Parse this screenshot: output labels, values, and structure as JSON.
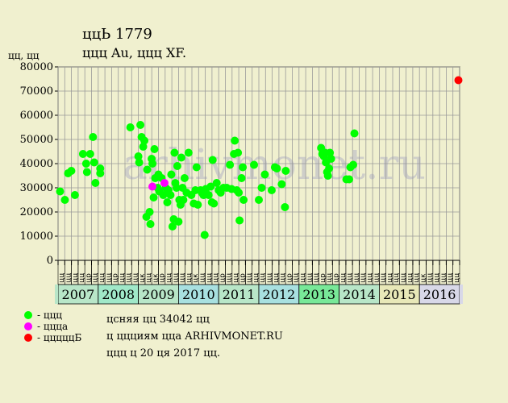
{
  "header": {
    "title": "ццЬ 1779",
    "subtitle": "ццц Au, ццц XF.",
    "y_unit": "цц, цц"
  },
  "legend": [
    {
      "label": "- ццц",
      "color": "#00ff00"
    },
    {
      "label": "- цццa",
      "color": "#ff00ff"
    },
    {
      "label": "- цццццБ",
      "color": "#ff0000"
    }
  ],
  "info": {
    "line1": "цcняя цц 34042 цц",
    "line2": "ц ццциям цца ARHIVMONET.RU",
    "line3": "ццц ц 20 ця 2017 цц."
  },
  "watermark": "arhivmonet.ru",
  "chart_data": {
    "type": "scatter",
    "title": "ццЬ 1779",
    "ylabel": "цц, цц",
    "ylim": [
      0,
      80000
    ],
    "yticks": [
      0,
      10000,
      20000,
      30000,
      40000,
      50000,
      60000,
      70000,
      80000
    ],
    "xlim": [
      2007.0,
      2017.0
    ],
    "grid": true,
    "years": [
      {
        "label": "2007",
        "color": "#b8e6c8"
      },
      {
        "label": "2008",
        "color": "#a0e8c8"
      },
      {
        "label": "2009",
        "color": "#b8e6c8"
      },
      {
        "label": "2010",
        "color": "#a8e0e0"
      },
      {
        "label": "2011",
        "color": "#b8e6c8"
      },
      {
        "label": "2012",
        "color": "#a8e0e0"
      },
      {
        "label": "2013",
        "color": "#78e898"
      },
      {
        "label": "2014",
        "color": "#b8e6c8"
      },
      {
        "label": "2015",
        "color": "#e8e8b8"
      },
      {
        "label": "2016",
        "color": "#d8d8e8"
      }
    ],
    "month_labels": [
      "цц",
      "цц",
      "цц",
      "цц",
      "цр",
      "цц",
      "цц",
      "цц",
      "цр",
      "цц",
      "цц",
      "цц",
      "цк",
      "цц",
      "цк",
      "цр",
      "цц",
      "цц",
      "цц",
      "цц",
      "цк",
      "цц",
      "цц",
      "цц",
      "цр",
      "цц",
      "цц",
      "цр",
      "цц",
      "цц",
      "цц",
      "цц",
      "цц",
      "цц",
      "цр",
      "цц",
      "цц",
      "цц",
      "цц",
      "цр",
      "цц",
      "цр",
      "цц",
      "цц",
      "цц",
      "цц",
      "цц",
      "цц",
      "цц",
      "цц",
      "цц",
      "цц",
      "цц",
      "цц",
      "цк",
      "цц",
      "цц",
      "цц",
      "цц",
      "цц"
    ],
    "series": [
      {
        "name": "ццц",
        "color": "#00ff00",
        "points": [
          [
            2007.05,
            28500
          ],
          [
            2007.17,
            25000
          ],
          [
            2007.25,
            36000
          ],
          [
            2007.33,
            37000
          ],
          [
            2007.42,
            27000
          ],
          [
            2007.62,
            44000
          ],
          [
            2007.7,
            40000
          ],
          [
            2007.72,
            36500
          ],
          [
            2007.8,
            44000
          ],
          [
            2007.87,
            51000
          ],
          [
            2007.9,
            40500
          ],
          [
            2007.93,
            32000
          ],
          [
            2008.05,
            38000
          ],
          [
            2008.05,
            36000
          ],
          [
            2008.8,
            55000
          ],
          [
            2009.0,
            43000
          ],
          [
            2009.02,
            40500
          ],
          [
            2009.05,
            56000
          ],
          [
            2009.08,
            51000
          ],
          [
            2009.12,
            47000
          ],
          [
            2009.15,
            49500
          ],
          [
            2009.2,
            18000
          ],
          [
            2009.22,
            37500
          ],
          [
            2009.28,
            20000
          ],
          [
            2009.3,
            15000
          ],
          [
            2009.33,
            42000
          ],
          [
            2009.35,
            40000
          ],
          [
            2009.38,
            26000
          ],
          [
            2009.4,
            46000
          ],
          [
            2009.42,
            34000
          ],
          [
            2009.48,
            30000
          ],
          [
            2009.5,
            35500
          ],
          [
            2009.52,
            28500
          ],
          [
            2009.58,
            34000
          ],
          [
            2009.62,
            27000
          ],
          [
            2009.68,
            30000
          ],
          [
            2009.72,
            24000
          ],
          [
            2009.75,
            29000
          ],
          [
            2009.8,
            27000
          ],
          [
            2009.82,
            35500
          ],
          [
            2009.85,
            14000
          ],
          [
            2009.88,
            17000
          ],
          [
            2009.9,
            44500
          ],
          [
            2009.92,
            32000
          ],
          [
            2009.95,
            30000
          ],
          [
            2009.97,
            39000
          ],
          [
            2010.0,
            16000
          ],
          [
            2010.02,
            25000
          ],
          [
            2010.05,
            23000
          ],
          [
            2010.07,
            42500
          ],
          [
            2010.1,
            30000
          ],
          [
            2010.12,
            25000
          ],
          [
            2010.15,
            34000
          ],
          [
            2010.2,
            28000
          ],
          [
            2010.25,
            44500
          ],
          [
            2010.32,
            27000
          ],
          [
            2010.38,
            23500
          ],
          [
            2010.42,
            29000
          ],
          [
            2010.45,
            38500
          ],
          [
            2010.48,
            23000
          ],
          [
            2010.55,
            29000
          ],
          [
            2010.58,
            28000
          ],
          [
            2010.62,
            27000
          ],
          [
            2010.65,
            10500
          ],
          [
            2010.68,
            29500
          ],
          [
            2010.75,
            27000
          ],
          [
            2010.8,
            30500
          ],
          [
            2010.83,
            24000
          ],
          [
            2010.85,
            41500
          ],
          [
            2010.88,
            23500
          ],
          [
            2010.95,
            32000
          ],
          [
            2011.0,
            29000
          ],
          [
            2011.05,
            28000
          ],
          [
            2011.12,
            30000
          ],
          [
            2011.2,
            30000
          ],
          [
            2011.28,
            39500
          ],
          [
            2011.32,
            29500
          ],
          [
            2011.38,
            44000
          ],
          [
            2011.4,
            49500
          ],
          [
            2011.45,
            29000
          ],
          [
            2011.48,
            44500
          ],
          [
            2011.5,
            28000
          ],
          [
            2011.52,
            16500
          ],
          [
            2011.57,
            34000
          ],
          [
            2011.6,
            38500
          ],
          [
            2011.62,
            25000
          ],
          [
            2011.88,
            39500
          ],
          [
            2012.0,
            25000
          ],
          [
            2012.07,
            30000
          ],
          [
            2012.15,
            35500
          ],
          [
            2012.32,
            29000
          ],
          [
            2012.4,
            38500
          ],
          [
            2012.45,
            38000
          ],
          [
            2012.57,
            31500
          ],
          [
            2012.65,
            22000
          ],
          [
            2012.67,
            37000
          ],
          [
            2013.55,
            46500
          ],
          [
            2013.58,
            44000
          ],
          [
            2013.62,
            43000
          ],
          [
            2013.65,
            44500
          ],
          [
            2013.67,
            40500
          ],
          [
            2013.7,
            36500
          ],
          [
            2013.72,
            35000
          ],
          [
            2013.75,
            38000
          ],
          [
            2013.77,
            44500
          ],
          [
            2013.8,
            42000
          ],
          [
            2014.18,
            33500
          ],
          [
            2014.25,
            33500
          ],
          [
            2014.28,
            38500
          ],
          [
            2014.35,
            39500
          ],
          [
            2014.38,
            52500
          ]
        ]
      },
      {
        "name": "цццa",
        "color": "#ff00ff",
        "points": [
          [
            2009.35,
            30500
          ],
          [
            2009.65,
            32000
          ]
        ]
      },
      {
        "name": "цццццБ",
        "color": "#ff0000",
        "points": [
          [
            2016.97,
            74500
          ]
        ]
      }
    ]
  }
}
